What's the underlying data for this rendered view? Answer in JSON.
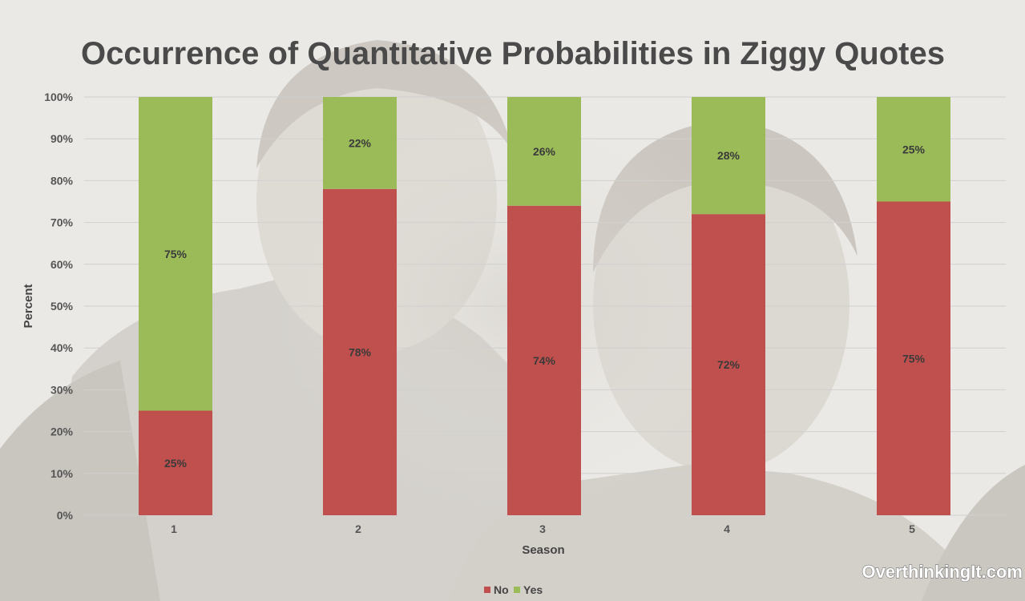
{
  "watermark": "OverthinkingIt.com",
  "colors": {
    "no": "#c0504d",
    "yes": "#9bbb59",
    "gridline": "#d0d0d0",
    "background": "#ebe9e5"
  },
  "chart_data": {
    "type": "bar",
    "stacked": true,
    "percent_stacked": true,
    "title": "Occurrence of Quantitative Probabilities in Ziggy Quotes",
    "xlabel": "Season",
    "ylabel": "Percent",
    "ylim": [
      0,
      100
    ],
    "yticks": [
      0,
      10,
      20,
      30,
      40,
      50,
      60,
      70,
      80,
      90,
      100
    ],
    "ytick_suffix": "%",
    "categories": [
      "1",
      "2",
      "3",
      "4",
      "5"
    ],
    "series": [
      {
        "name": "No",
        "color": "#c0504d",
        "values": [
          25,
          78,
          74,
          72,
          75
        ],
        "labels": [
          "25%",
          "78%",
          "74%",
          "72%",
          "75%"
        ]
      },
      {
        "name": "Yes",
        "color": "#9bbb59",
        "values": [
          75,
          22,
          26,
          28,
          25
        ],
        "labels": [
          "75%",
          "22%",
          "26%",
          "28%",
          "25%"
        ]
      }
    ],
    "grid": true,
    "legend_position": "bottom"
  }
}
